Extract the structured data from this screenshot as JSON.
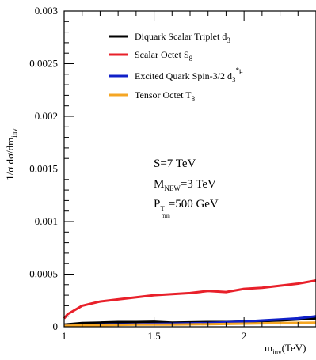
{
  "chart_data": {
    "type": "line",
    "xlabel": {
      "main": "m",
      "sub": "inv",
      "unit": "(TeV)"
    },
    "ylabel": "1/σ dσ/dm",
    "ylabel_sub": "inv",
    "xlim": [
      1.0,
      2.4
    ],
    "ylim": [
      0,
      0.003
    ],
    "x_ticks": [
      1,
      1.5,
      2
    ],
    "y_ticks": [
      0,
      0.0005,
      0.001,
      0.0015,
      0.002,
      0.0025,
      0.003
    ],
    "y_tick_labels": [
      "0",
      "0.0005",
      "0.001",
      "0.0015",
      "0.002",
      "0.0025",
      "0.003"
    ],
    "x_tick_labels": [
      "1",
      "1.5",
      "2"
    ],
    "legend": [
      {
        "main": "Diquark Scalar Triplet d",
        "sub": "3",
        "sup": "",
        "color": "#000000"
      },
      {
        "main": "Scalar Octet S",
        "sub": "8",
        "sup": "",
        "color": "#e8202a"
      },
      {
        "main": "Excited Quark Spin-3/2 d",
        "sub": "3",
        "sup": "*μ",
        "color": "#1020c8"
      },
      {
        "main": "Tensor Octet T",
        "sub": "8",
        "sup": "",
        "color": "#f5a623"
      }
    ],
    "annotations": {
      "energy": "S=7 TeV",
      "mass_main": "M",
      "mass_sub": "NEW",
      "mass_val": "=3 TeV",
      "pt_main": "P",
      "pt_sub": "T",
      "pt_subsub": "min",
      "pt_val": "=500 GeV"
    },
    "series": [
      {
        "name": "Scalar Octet S8",
        "color": "#e8202a",
        "x": [
          1.0,
          1.02,
          1.05,
          1.1,
          1.15,
          1.2,
          1.3,
          1.4,
          1.5,
          1.6,
          1.7,
          1.8,
          1.9,
          2.0,
          2.1,
          2.2,
          2.3,
          2.4
        ],
        "y": [
          8e-05,
          0.00012,
          0.00015,
          0.0002,
          0.00022,
          0.00024,
          0.00026,
          0.00028,
          0.0003,
          0.00031,
          0.00032,
          0.00034,
          0.00033,
          0.00036,
          0.00037,
          0.00039,
          0.00041,
          0.00044
        ]
      },
      {
        "name": "Diquark Scalar Triplet d3",
        "color": "#000000",
        "x": [
          1.0,
          1.1,
          1.2,
          1.3,
          1.4,
          1.5,
          1.6,
          1.7,
          1.8,
          1.9,
          2.0,
          2.1,
          2.2,
          2.3,
          2.4
        ],
        "y": [
          2e-05,
          3.5e-05,
          4e-05,
          4.5e-05,
          4.5e-05,
          4.8e-05,
          4e-05,
          4.2e-05,
          4.5e-05,
          4.5e-05,
          5e-05,
          5.5e-05,
          6e-05,
          7e-05,
          8e-05
        ]
      },
      {
        "name": "Excited Quark Spin-3/2 d3*μ",
        "color": "#1020c8",
        "x": [
          1.0,
          1.2,
          1.4,
          1.6,
          1.8,
          2.0,
          2.1,
          2.2,
          2.3,
          2.4
        ],
        "y": [
          1e-05,
          2e-05,
          2.5e-05,
          3e-05,
          3.5e-05,
          5e-05,
          6e-05,
          7e-05,
          8e-05,
          0.0001
        ]
      },
      {
        "name": "Tensor Octet T8",
        "color": "#f5a623",
        "x": [
          1.0,
          1.2,
          1.4,
          1.6,
          1.8,
          2.0,
          2.2,
          2.4
        ],
        "y": [
          1e-05,
          1.5e-05,
          2e-05,
          2e-05,
          2.5e-05,
          3e-05,
          3.5e-05,
          4e-05
        ]
      }
    ]
  }
}
